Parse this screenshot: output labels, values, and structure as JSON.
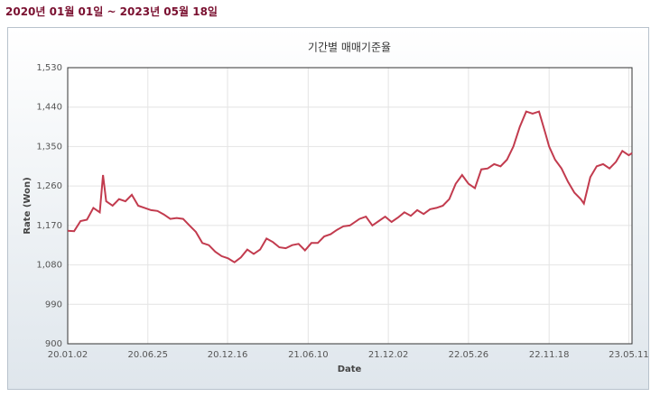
{
  "header": {
    "range": "2020년 01월 01일 ~ 2023년 05월 18일"
  },
  "chart_data": {
    "type": "line",
    "title": "기간별 매매기준율",
    "x_label": "Date",
    "y_label": "Rate (Won)",
    "x": [
      "20.01.02",
      "20.01.16",
      "20.01.30",
      "20.02.13",
      "20.02.27",
      "20.03.12",
      "20.03.19",
      "20.03.26",
      "20.04.09",
      "20.04.23",
      "20.05.07",
      "20.05.21",
      "20.06.04",
      "20.06.18",
      "20.07.02",
      "20.07.16",
      "20.07.30",
      "20.08.13",
      "20.08.27",
      "20.09.10",
      "20.09.24",
      "20.10.08",
      "20.10.22",
      "20.11.05",
      "20.11.19",
      "20.12.03",
      "20.12.17",
      "20.12.31",
      "21.01.14",
      "21.01.28",
      "21.02.11",
      "21.02.25",
      "21.03.11",
      "21.03.25",
      "21.04.08",
      "21.04.22",
      "21.05.06",
      "21.05.20",
      "21.06.03",
      "21.06.17",
      "21.07.01",
      "21.07.15",
      "21.07.29",
      "21.08.12",
      "21.08.26",
      "21.09.09",
      "21.09.30",
      "21.10.14",
      "21.10.28",
      "21.11.11",
      "21.11.25",
      "21.12.09",
      "21.12.23",
      "22.01.06",
      "22.01.20",
      "22.02.03",
      "22.02.17",
      "22.03.03",
      "22.03.17",
      "22.03.31",
      "22.04.14",
      "22.04.28",
      "22.05.12",
      "22.05.26",
      "22.06.09",
      "22.06.23",
      "22.07.07",
      "22.07.21",
      "22.08.04",
      "22.08.18",
      "22.09.01",
      "22.09.15",
      "22.09.29",
      "22.10.13",
      "22.10.27",
      "22.11.10",
      "22.11.18",
      "22.12.01",
      "22.12.15",
      "22.12.29",
      "23.01.12",
      "23.01.26",
      "23.02.02",
      "23.02.16",
      "23.03.02",
      "23.03.16",
      "23.03.30",
      "23.04.13",
      "23.04.27",
      "23.05.11",
      "23.05.18"
    ],
    "series": [
      {
        "name": "매매기준율",
        "color": "#c23b4e",
        "values": [
          1158,
          1157,
          1180,
          1183,
          1210,
          1200,
          1285,
          1225,
          1215,
          1230,
          1225,
          1240,
          1215,
          1210,
          1205,
          1203,
          1195,
          1185,
          1187,
          1185,
          1170,
          1155,
          1130,
          1125,
          1110,
          1100,
          1095,
          1086,
          1097,
          1115,
          1105,
          1115,
          1140,
          1132,
          1120,
          1118,
          1125,
          1128,
          1113,
          1130,
          1130,
          1145,
          1150,
          1160,
          1168,
          1170,
          1185,
          1190,
          1170,
          1180,
          1190,
          1178,
          1188,
          1200,
          1192,
          1205,
          1196,
          1207,
          1210,
          1215,
          1230,
          1265,
          1285,
          1265,
          1255,
          1298,
          1300,
          1310,
          1305,
          1320,
          1350,
          1395,
          1430,
          1425,
          1430,
          1380,
          1350,
          1320,
          1300,
          1270,
          1245,
          1230,
          1220,
          1280,
          1305,
          1310,
          1300,
          1315,
          1340,
          1330,
          1335
        ]
      }
    ],
    "xlim": [
      "20.01.02",
      "23.05.18"
    ],
    "xticks": [
      "20.01.02",
      "20.06.25",
      "20.12.16",
      "21.06.10",
      "21.12.02",
      "22.05.26",
      "22.11.18",
      "23.05.11"
    ],
    "ylim": [
      900,
      1530
    ],
    "yticks": [
      {
        "value": 900,
        "label": "900"
      },
      {
        "value": 990,
        "label": "990"
      },
      {
        "value": 1080,
        "label": "1,080"
      },
      {
        "value": 1170,
        "label": "1,170"
      },
      {
        "value": 1260,
        "label": "1,260"
      },
      {
        "value": 1350,
        "label": "1,350"
      },
      {
        "value": 1440,
        "label": "1,440"
      },
      {
        "value": 1530,
        "label": "1,530"
      }
    ],
    "grid": true
  }
}
